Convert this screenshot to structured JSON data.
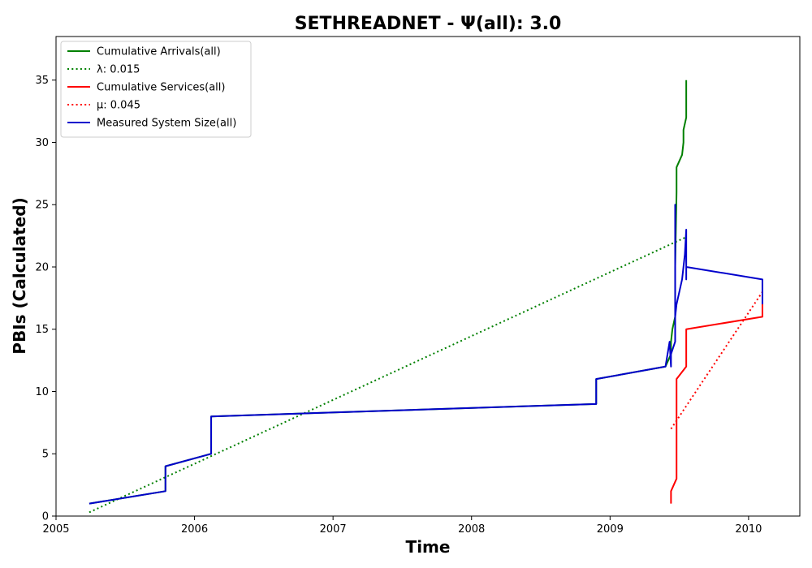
{
  "chart_data": {
    "type": "line",
    "title": "SETHREADNET -  Ψ(all): 3.0",
    "xlabel": "Time",
    "ylabel": "PBIs (Calculated)",
    "xlim": [
      2005.0,
      2010.37
    ],
    "ylim": [
      0,
      38.5
    ],
    "x_ticks": [
      2005,
      2006,
      2007,
      2008,
      2009,
      2010
    ],
    "y_ticks": [
      0,
      5,
      10,
      15,
      20,
      25,
      30,
      35
    ],
    "grid": false,
    "legend_position": "top-left",
    "series": [
      {
        "name": "Cumulative Arrivals(all)",
        "color": "#008000",
        "style": "solid",
        "points": [
          [
            2005.24,
            1
          ],
          [
            2005.79,
            2
          ],
          [
            2005.79,
            4
          ],
          [
            2006.12,
            5
          ],
          [
            2006.12,
            8
          ],
          [
            2008.9,
            9
          ],
          [
            2008.9,
            11
          ],
          [
            2009.4,
            12
          ],
          [
            2009.44,
            13
          ],
          [
            2009.44,
            14
          ],
          [
            2009.45,
            15
          ],
          [
            2009.47,
            16
          ],
          [
            2009.47,
            17
          ],
          [
            2009.47,
            20
          ],
          [
            2009.48,
            26
          ],
          [
            2009.48,
            27
          ],
          [
            2009.48,
            28
          ],
          [
            2009.52,
            29
          ],
          [
            2009.53,
            30
          ],
          [
            2009.53,
            31
          ],
          [
            2009.55,
            32
          ],
          [
            2009.55,
            33
          ],
          [
            2009.55,
            34
          ],
          [
            2009.55,
            35
          ]
        ]
      },
      {
        "name": "λ: 0.015",
        "color": "#008000",
        "style": "dotted",
        "points": [
          [
            2005.24,
            0.3
          ],
          [
            2009.55,
            22.4
          ]
        ]
      },
      {
        "name": "Cumulative Services(all)",
        "color": "#ff0000",
        "style": "solid",
        "points": [
          [
            2009.44,
            1
          ],
          [
            2009.44,
            2
          ],
          [
            2009.48,
            3
          ],
          [
            2009.48,
            11
          ],
          [
            2009.55,
            12
          ],
          [
            2009.55,
            15
          ],
          [
            2010.1,
            16
          ],
          [
            2010.1,
            17
          ]
        ]
      },
      {
        "name": "μ: 0.045",
        "color": "#ff0000",
        "style": "dotted",
        "points": [
          [
            2009.44,
            7
          ],
          [
            2010.1,
            18
          ]
        ]
      },
      {
        "name": "Measured System Size(all)",
        "color": "#0000cc",
        "style": "solid",
        "points": [
          [
            2005.24,
            1
          ],
          [
            2005.79,
            2
          ],
          [
            2005.79,
            4
          ],
          [
            2006.12,
            5
          ],
          [
            2006.12,
            8
          ],
          [
            2008.9,
            9
          ],
          [
            2008.9,
            11
          ],
          [
            2009.4,
            12
          ],
          [
            2009.43,
            14
          ],
          [
            2009.44,
            12
          ],
          [
            2009.44,
            13
          ],
          [
            2009.47,
            14
          ],
          [
            2009.47,
            25
          ],
          [
            2009.47,
            16
          ],
          [
            2009.48,
            17
          ],
          [
            2009.52,
            19
          ],
          [
            2009.53,
            20
          ],
          [
            2009.54,
            21
          ],
          [
            2009.55,
            23
          ],
          [
            2009.55,
            19
          ],
          [
            2009.55,
            20
          ],
          [
            2010.1,
            19
          ],
          [
            2010.1,
            17
          ]
        ]
      }
    ]
  }
}
